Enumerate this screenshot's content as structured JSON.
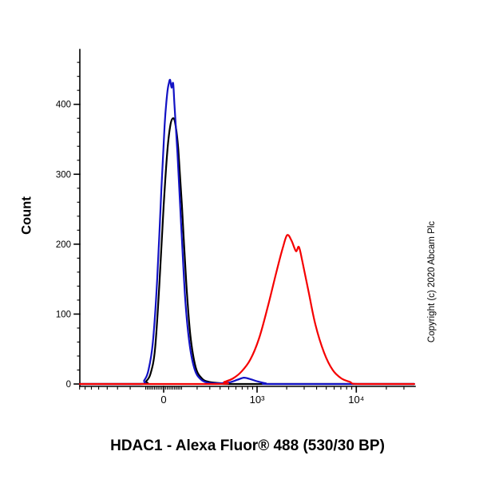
{
  "page": {
    "copyright": "Copyright (c) 2020 Abcam Plc"
  },
  "chart_data": {
    "type": "line",
    "title": "",
    "xlabel": "HDAC1 - Alexa Fluor® 488 (530/30 BP)",
    "ylabel": "Count",
    "x_scale": "logicle-arcsinh",
    "x_range": [
      -800,
      38000
    ],
    "ylim": [
      0,
      475
    ],
    "grid": "off",
    "legend": "none",
    "y_major_ticks": [
      0,
      100,
      200,
      300,
      400
    ],
    "y_minor_step": 20,
    "x_major_ticks": [
      {
        "value": 0,
        "label": "0"
      },
      {
        "value": 1000,
        "label": "10³"
      },
      {
        "value": 10000,
        "label": "10⁴"
      }
    ],
    "x_minor_ticks": [
      -800,
      -700,
      -600,
      -500,
      -400,
      -300,
      -200,
      -100,
      -90,
      -80,
      -70,
      -60,
      -50,
      -40,
      -30,
      -20,
      -10,
      10,
      20,
      30,
      40,
      50,
      60,
      70,
      80,
      90,
      100,
      200,
      300,
      400,
      500,
      600,
      700,
      800,
      900,
      2000,
      3000,
      4000,
      5000,
      6000,
      7000,
      8000,
      9000,
      20000,
      30000
    ],
    "series": [
      {
        "name": "black",
        "color": "#000000",
        "x": [
          -800,
          -122,
          -97,
          -72,
          -47,
          -24,
          0,
          19,
          35,
          50,
          64,
          81,
          102,
          128,
          155,
          190,
          235,
          295,
          423,
          622,
          38000
        ],
        "y": [
          0,
          0,
          4,
          15,
          50,
          140,
          255,
          330,
          368,
          380,
          372,
          335,
          255,
          145,
          68,
          24,
          8,
          3,
          1,
          0,
          0
        ]
      },
      {
        "name": "blue",
        "color": "#1212c4",
        "x": [
          -800,
          -136,
          -109,
          -84,
          -59,
          -35,
          -12,
          5,
          19,
          28,
          35,
          43,
          52,
          59,
          76,
          97,
          122,
          150,
          184,
          225,
          276,
          355,
          500,
          622,
          730,
          852,
          995,
          1221,
          1573,
          38000
        ],
        "y": [
          0,
          0,
          5,
          20,
          60,
          150,
          280,
          370,
          415,
          430,
          435,
          424,
          430,
          400,
          330,
          230,
          120,
          55,
          20,
          7,
          2,
          1,
          2,
          6,
          9,
          7,
          4,
          1,
          0,
          0
        ]
      },
      {
        "name": "red",
        "color": "#f50000",
        "x": [
          -800,
          355,
          447,
          558,
          691,
          852,
          1047,
          1285,
          1573,
          1830,
          2024,
          2240,
          2479,
          2656,
          2878,
          3344,
          3888,
          4750,
          5802,
          7088,
          8658,
          10577,
          38000
        ],
        "y": [
          0,
          0,
          3,
          8,
          18,
          35,
          65,
          110,
          160,
          195,
          213,
          205,
          190,
          196,
          175,
          130,
          85,
          45,
          20,
          8,
          3,
          0,
          0
        ]
      }
    ]
  }
}
